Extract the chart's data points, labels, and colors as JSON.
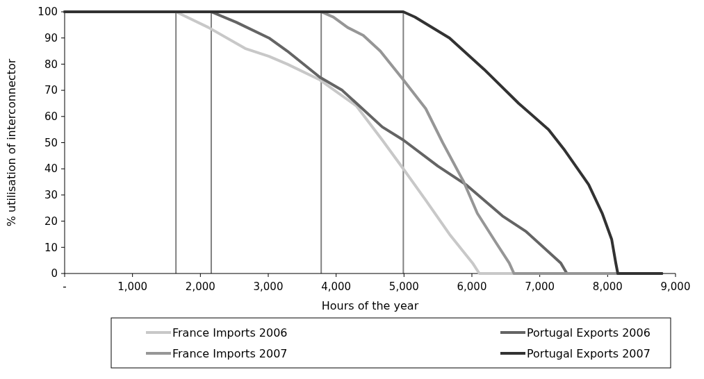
{
  "chart_data": {
    "type": "line",
    "xlabel": "Hours of the year",
    "ylabel": "% utilisation of interconnector",
    "xlim": [
      0,
      9000
    ],
    "xticks": [
      {
        "value": 0,
        "label": "-"
      },
      {
        "value": 1000,
        "label": "1,000"
      },
      {
        "value": 2000,
        "label": "2,000"
      },
      {
        "value": 3000,
        "label": "3,000"
      },
      {
        "value": 4000,
        "label": "4,000"
      },
      {
        "value": 5000,
        "label": "5,000"
      },
      {
        "value": 6000,
        "label": "6,000"
      },
      {
        "value": 7000,
        "label": "7,000"
      },
      {
        "value": 8000,
        "label": "8,000"
      },
      {
        "value": 9000,
        "label": "9,000"
      }
    ],
    "ylim": [
      0,
      100
    ],
    "yticks": [
      0,
      10,
      20,
      30,
      40,
      50,
      60,
      70,
      80,
      90,
      100
    ],
    "grid": false,
    "legend": "bottom",
    "marker": "none",
    "line_style": "solid",
    "ref_lines": [
      {
        "axis": "x",
        "value": 1640,
        "color": "#808080"
      },
      {
        "axis": "x",
        "value": 2160,
        "color": "#808080"
      },
      {
        "axis": "x",
        "value": 3780,
        "color": "#808080"
      },
      {
        "axis": "x",
        "value": 4990,
        "color": "#808080"
      }
    ],
    "series": [
      {
        "name": "France Imports 2006",
        "color": "#c8c8c8",
        "x": [
          0,
          1640,
          2120,
          2660,
          3010,
          3280,
          3760,
          4300,
          4680,
          4990,
          5320,
          5670,
          6010,
          6110,
          8800
        ],
        "values": [
          100,
          100,
          94,
          86,
          83,
          80,
          74,
          64,
          51,
          40,
          28,
          15,
          4,
          0,
          0
        ]
      },
      {
        "name": "Portugal Exports 2006",
        "color": "#646464",
        "x": [
          0,
          2160,
          2530,
          3010,
          3280,
          3760,
          4090,
          4680,
          4990,
          5500,
          5910,
          6450,
          6800,
          7310,
          7400,
          8800
        ],
        "values": [
          100,
          100,
          96,
          90,
          85,
          75,
          70,
          56,
          51,
          41,
          34,
          22,
          16,
          4,
          0,
          0
        ]
      },
      {
        "name": "France Imports 2007",
        "color": "#969696",
        "x": [
          0,
          3780,
          3960,
          4170,
          4400,
          4650,
          4990,
          5320,
          5570,
          5880,
          6080,
          6350,
          6550,
          6620,
          8800
        ],
        "values": [
          100,
          100,
          98,
          94,
          91,
          85,
          74,
          63,
          50,
          35,
          23,
          12,
          4,
          0,
          0
        ]
      },
      {
        "name": "Portugal Exports 2007",
        "color": "#323232",
        "x": [
          0,
          4990,
          5160,
          5670,
          6180,
          6690,
          7130,
          7370,
          7720,
          7920,
          8060,
          8120,
          8150,
          8800
        ],
        "values": [
          100,
          100,
          98,
          90,
          78,
          65,
          55,
          47,
          34,
          23,
          13,
          4,
          0,
          0
        ]
      }
    ]
  }
}
